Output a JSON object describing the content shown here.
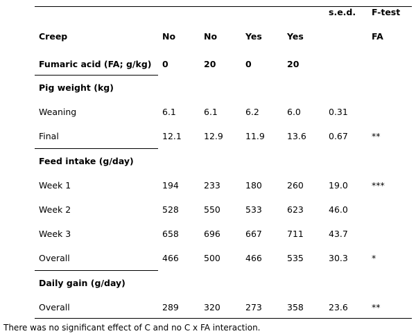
{
  "header": {
    "sed": "s.e.d.",
    "ftest": "F-test",
    "ftest_sub": "FA",
    "creep_label": "Creep",
    "creep_values": [
      "No",
      "No",
      "Yes",
      "Yes"
    ],
    "fa_label": "Fumaric acid (FA; g/kg)",
    "fa_values": [
      "0",
      "20",
      "0",
      "20"
    ]
  },
  "sections": [
    {
      "title": "Pig weight (kg)",
      "rows": [
        {
          "label": "Weaning",
          "values": [
            "6.1",
            "6.1",
            "6.2",
            "6.0"
          ],
          "sed": "0.31",
          "sig": ""
        },
        {
          "label": "Final",
          "values": [
            "12.1",
            "12.9",
            "11.9",
            "13.6"
          ],
          "sed": "0.67",
          "sig": "**"
        }
      ]
    },
    {
      "title": "Feed  intake (g/day)",
      "rows": [
        {
          "label": "Week 1",
          "values": [
            "194",
            "233",
            "180",
            "260"
          ],
          "sed": "19.0",
          "sig": "***"
        },
        {
          "label": "Week 2",
          "values": [
            "528",
            "550",
            "533",
            "623"
          ],
          "sed": "46.0",
          "sig": ""
        },
        {
          "label": "Week 3",
          "values": [
            "658",
            "696",
            "667",
            "711"
          ],
          "sed": "43.7",
          "sig": ""
        },
        {
          "label": "Overall",
          "values": [
            "466",
            "500",
            "466",
            "535"
          ],
          "sed": "30.3",
          "sig": "*"
        }
      ]
    },
    {
      "title": "Daily gain (g/day)",
      "rows": [
        {
          "label": "Overall",
          "values": [
            "289",
            "320",
            "273",
            "358"
          ],
          "sed": "23.6",
          "sig": "**"
        }
      ]
    }
  ],
  "footnote": "There was no significant effect of C and no C x FA interaction."
}
